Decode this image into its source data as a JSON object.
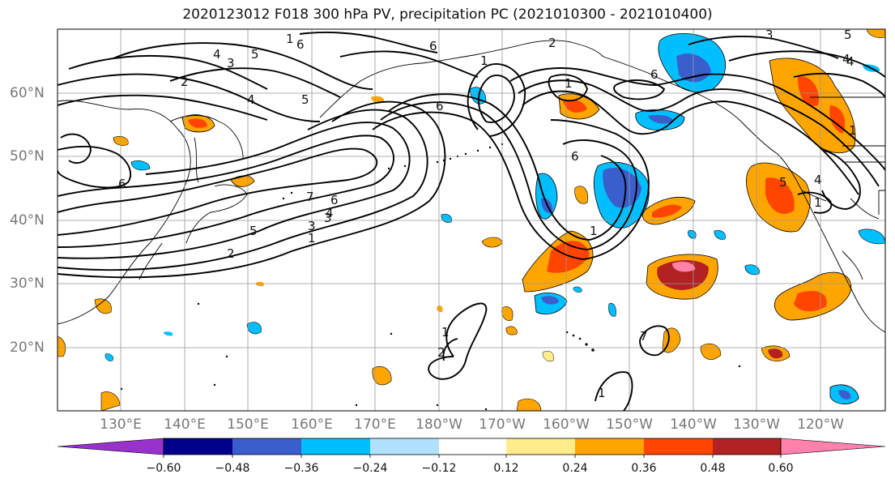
{
  "title": "2020123012 F018 300 hPa PV, precipitation PC (2021010300 - 2021010400)",
  "map": {
    "lon_labels": [
      "130°E",
      "140°E",
      "150°E",
      "160°E",
      "170°E",
      "180°W",
      "170°W",
      "160°W",
      "150°W",
      "140°W",
      "130°W",
      "120°W"
    ],
    "lat_labels": [
      "60°N",
      "50°N",
      "40°N",
      "30°N",
      "20°N"
    ],
    "contour_labels": [
      "1",
      "6",
      "4",
      "3",
      "5",
      "2",
      "4",
      "5",
      "6",
      "6",
      "2",
      "1",
      "6",
      "7",
      "6",
      "3",
      "1",
      "5",
      "3",
      "4",
      "6",
      "6",
      "1",
      "2",
      "1",
      "5",
      "4",
      "1",
      "2",
      "1",
      "1",
      "7",
      "5",
      "4",
      "1",
      "3",
      "4"
    ]
  },
  "colorbar": {
    "ticks": [
      "−0.60",
      "−0.48",
      "−0.36",
      "−0.24",
      "−0.12",
      "0.12",
      "0.24",
      "0.36",
      "0.48",
      "0.60"
    ],
    "colors": [
      "#9932cc",
      "#00008b",
      "#3a5fcd",
      "#00bfff",
      "#b0e2ff",
      "#ffffff",
      "#ffec8b",
      "#ffa500",
      "#ff4500",
      "#b22222",
      "#ff82ab"
    ]
  },
  "legend_colors": {
    "contour": "#000000",
    "grid": "#999999",
    "coast": "#000000"
  }
}
